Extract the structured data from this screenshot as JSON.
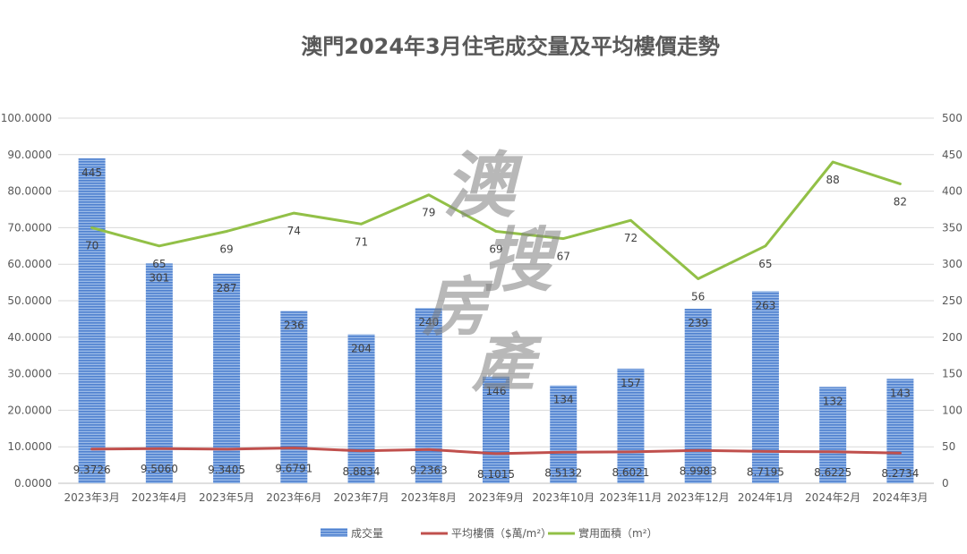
{
  "chart_data": {
    "type": "bar",
    "title": "澳門2024年3月住宅成交量及平均樓價走勢",
    "categories": [
      "2023年3月",
      "2023年4月",
      "2023年5月",
      "2023年6月",
      "2023年7月",
      "2023年8月",
      "2023年9月",
      "2023年10月",
      "2023年11月",
      "2023年12月",
      "2024年1月",
      "2024年2月",
      "2024年3月"
    ],
    "left_axis": {
      "min": 0,
      "max": 100,
      "step": 10,
      "tick_labels": [
        "0.0000",
        "10.0000",
        "20.0000",
        "30.0000",
        "40.0000",
        "50.0000",
        "60.0000",
        "70.0000",
        "80.0000",
        "90.0000",
        "100.0000"
      ]
    },
    "right_axis": {
      "min": 0,
      "max": 500,
      "step": 50,
      "tick_labels": [
        "0",
        "50",
        "100",
        "150",
        "200",
        "250",
        "300",
        "350",
        "400",
        "450",
        "500"
      ]
    },
    "grid": true,
    "legend_position": "bottom",
    "series": [
      {
        "name": "成交量",
        "type": "bar",
        "axis": "right",
        "color": "#5b8ed6",
        "values": [
          445,
          301,
          287,
          236,
          204,
          240,
          146,
          134,
          157,
          239,
          263,
          132,
          143
        ],
        "labels": [
          "445",
          "301",
          "287",
          "236",
          "204",
          "240",
          "146",
          "134",
          "157",
          "239",
          "263",
          "132",
          "143"
        ]
      },
      {
        "name": "平均樓價（$萬/m²）",
        "type": "line",
        "axis": "left",
        "color": "#c0504d",
        "values": [
          9.3726,
          9.506,
          9.3405,
          9.6791,
          8.8834,
          9.2363,
          8.1015,
          8.5132,
          8.6021,
          8.9983,
          8.7195,
          8.6225,
          8.2734
        ],
        "labels": [
          "9.3726",
          "9.5060",
          "9.3405",
          "9.6791",
          "8.8834",
          "9.2363",
          "8.1015",
          "8.5132",
          "8.6021",
          "8.9983",
          "8.7195",
          "8.6225",
          "8.2734"
        ]
      },
      {
        "name": "實用面積（m²）",
        "type": "line",
        "axis": "left",
        "color": "#92c047",
        "values": [
          70,
          65,
          69,
          74,
          71,
          79,
          69,
          67,
          72,
          56,
          65,
          88,
          82
        ],
        "labels": [
          "70",
          "65",
          "69",
          "74",
          "71",
          "79",
          "69",
          "67",
          "72",
          "56",
          "65",
          "88",
          "82"
        ]
      }
    ]
  },
  "watermark": {
    "chars": [
      "澳",
      "搜",
      "房",
      "產"
    ]
  }
}
